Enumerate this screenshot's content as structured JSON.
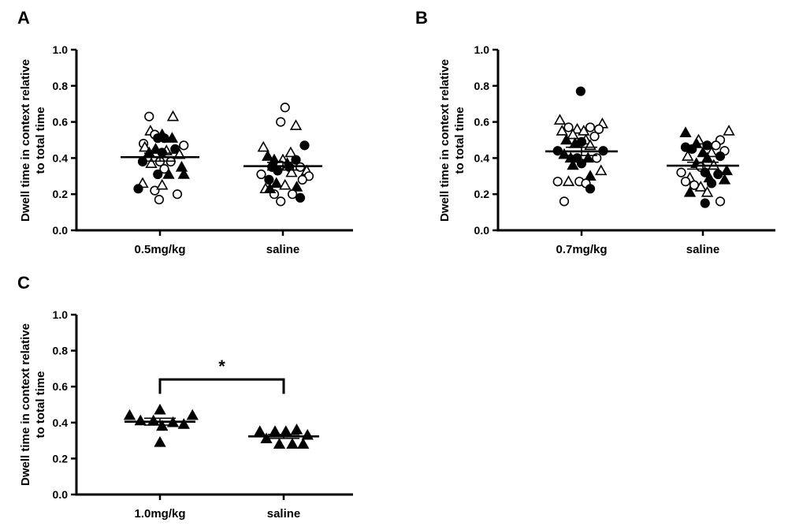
{
  "figure": {
    "panel_labels": [
      "A",
      "B",
      "C"
    ],
    "y_axis_label_line1": "Dwell time in context relative",
    "y_axis_label_line2": "to total time",
    "significance_marker": "*"
  },
  "chart_data": [
    {
      "panel": "A",
      "type": "scatter",
      "categories": [
        "0.5mg/kg",
        "saline"
      ],
      "ylim": [
        0,
        1.0
      ],
      "yticks": [
        "0.0",
        "0.2",
        "0.4",
        "0.6",
        "0.8",
        "1.0"
      ],
      "ylabel": "Dwell time in context relative to total time",
      "groups": [
        {
          "category": "0.5mg/kg",
          "mean": 0.405,
          "sem": 0.022,
          "points": [
            {
              "dx": -0.38,
              "y": 0.48,
              "marker": "open-circle"
            },
            {
              "dx": -0.25,
              "y": 0.63,
              "marker": "open-circle"
            },
            {
              "dx": 0.3,
              "y": 0.63,
              "marker": "open-triangle"
            },
            {
              "dx": -0.22,
              "y": 0.55,
              "marker": "open-triangle"
            },
            {
              "dx": 0.05,
              "y": 0.53,
              "marker": "filled-triangle"
            },
            {
              "dx": -0.12,
              "y": 0.53,
              "marker": "open-circle"
            },
            {
              "dx": 0.1,
              "y": 0.51,
              "marker": "filled-circle"
            },
            {
              "dx": -0.05,
              "y": 0.51,
              "marker": "filled-circle"
            },
            {
              "dx": 0.28,
              "y": 0.51,
              "marker": "filled-triangle"
            },
            {
              "dx": 0.55,
              "y": 0.47,
              "marker": "open-circle"
            },
            {
              "dx": -0.35,
              "y": 0.46,
              "marker": "open-triangle"
            },
            {
              "dx": 0.35,
              "y": 0.45,
              "marker": "filled-circle"
            },
            {
              "dx": -0.1,
              "y": 0.45,
              "marker": "filled-triangle"
            },
            {
              "dx": 0.15,
              "y": 0.44,
              "marker": "open-triangle"
            },
            {
              "dx": -0.25,
              "y": 0.43,
              "marker": "filled-triangle"
            },
            {
              "dx": 0.05,
              "y": 0.43,
              "marker": "filled-circle"
            },
            {
              "dx": 0.45,
              "y": 0.42,
              "marker": "open-triangle"
            },
            {
              "dx": -0.4,
              "y": 0.38,
              "marker": "filled-circle"
            },
            {
              "dx": 0.0,
              "y": 0.38,
              "marker": "open-circle"
            },
            {
              "dx": -0.2,
              "y": 0.37,
              "marker": "open-triangle"
            },
            {
              "dx": 0.25,
              "y": 0.38,
              "marker": "open-circle"
            },
            {
              "dx": 0.5,
              "y": 0.35,
              "marker": "filled-triangle"
            },
            {
              "dx": 0.1,
              "y": 0.34,
              "marker": "open-circle"
            },
            {
              "dx": -0.05,
              "y": 0.31,
              "marker": "filled-circle"
            },
            {
              "dx": 0.2,
              "y": 0.31,
              "marker": "filled-triangle"
            },
            {
              "dx": 0.55,
              "y": 0.31,
              "marker": "filled-triangle"
            },
            {
              "dx": -0.4,
              "y": 0.26,
              "marker": "open-triangle"
            },
            {
              "dx": -0.5,
              "y": 0.23,
              "marker": "filled-circle"
            },
            {
              "dx": -0.12,
              "y": 0.22,
              "marker": "open-circle"
            },
            {
              "dx": 0.05,
              "y": 0.25,
              "marker": "open-triangle"
            },
            {
              "dx": 0.4,
              "y": 0.2,
              "marker": "open-circle"
            },
            {
              "dx": -0.02,
              "y": 0.17,
              "marker": "open-circle"
            }
          ]
        },
        {
          "category": "saline",
          "mean": 0.355,
          "sem": 0.021,
          "points": [
            {
              "dx": 0.05,
              "y": 0.68,
              "marker": "open-circle"
            },
            {
              "dx": -0.05,
              "y": 0.6,
              "marker": "open-circle"
            },
            {
              "dx": 0.3,
              "y": 0.58,
              "marker": "open-triangle"
            },
            {
              "dx": -0.45,
              "y": 0.46,
              "marker": "open-triangle"
            },
            {
              "dx": 0.5,
              "y": 0.47,
              "marker": "filled-circle"
            },
            {
              "dx": 0.18,
              "y": 0.43,
              "marker": "open-triangle"
            },
            {
              "dx": -0.35,
              "y": 0.41,
              "marker": "filled-triangle"
            },
            {
              "dx": 0.0,
              "y": 0.39,
              "marker": "open-triangle"
            },
            {
              "dx": -0.2,
              "y": 0.39,
              "marker": "filled-triangle"
            },
            {
              "dx": 0.3,
              "y": 0.39,
              "marker": "filled-circle"
            },
            {
              "dx": 0.1,
              "y": 0.37,
              "marker": "filled-triangle"
            },
            {
              "dx": -0.05,
              "y": 0.36,
              "marker": "open-circle"
            },
            {
              "dx": 0.15,
              "y": 0.35,
              "marker": "filled-circle"
            },
            {
              "dx": -0.25,
              "y": 0.35,
              "marker": "filled-circle"
            },
            {
              "dx": 0.4,
              "y": 0.35,
              "marker": "open-circle"
            },
            {
              "dx": 0.55,
              "y": 0.33,
              "marker": "open-triangle"
            },
            {
              "dx": -0.12,
              "y": 0.33,
              "marker": "filled-circle"
            },
            {
              "dx": 0.2,
              "y": 0.32,
              "marker": "open-triangle"
            },
            {
              "dx": -0.5,
              "y": 0.31,
              "marker": "open-circle"
            },
            {
              "dx": 0.6,
              "y": 0.3,
              "marker": "open-circle"
            },
            {
              "dx": -0.32,
              "y": 0.28,
              "marker": "filled-circle"
            },
            {
              "dx": 0.45,
              "y": 0.28,
              "marker": "open-circle"
            },
            {
              "dx": -0.15,
              "y": 0.26,
              "marker": "filled-triangle"
            },
            {
              "dx": 0.05,
              "y": 0.25,
              "marker": "open-triangle"
            },
            {
              "dx": 0.32,
              "y": 0.24,
              "marker": "filled-triangle"
            },
            {
              "dx": -0.4,
              "y": 0.23,
              "marker": "open-triangle"
            },
            {
              "dx": -0.2,
              "y": 0.2,
              "marker": "open-circle"
            },
            {
              "dx": 0.22,
              "y": 0.2,
              "marker": "open-circle"
            },
            {
              "dx": 0.4,
              "y": 0.18,
              "marker": "filled-circle"
            },
            {
              "dx": -0.05,
              "y": 0.16,
              "marker": "open-circle"
            },
            {
              "dx": -0.3,
              "y": 0.23,
              "marker": "filled-triangle"
            }
          ]
        }
      ]
    },
    {
      "panel": "B",
      "type": "scatter",
      "categories": [
        "0.7mg/kg",
        "saline"
      ],
      "ylim": [
        0,
        1.0
      ],
      "yticks": [
        "0.0",
        "0.2",
        "0.4",
        "0.6",
        "0.8",
        "1.0"
      ],
      "ylabel": "Dwell time in context relative to total time",
      "groups": [
        {
          "category": "0.7mg/kg",
          "mean": 0.437,
          "sem": 0.023,
          "points": [
            {
              "dx": -0.02,
              "y": 0.77,
              "marker": "filled-circle"
            },
            {
              "dx": -0.5,
              "y": 0.61,
              "marker": "open-triangle"
            },
            {
              "dx": 0.48,
              "y": 0.59,
              "marker": "open-triangle"
            },
            {
              "dx": 0.2,
              "y": 0.57,
              "marker": "open-circle"
            },
            {
              "dx": -0.3,
              "y": 0.57,
              "marker": "open-circle"
            },
            {
              "dx": 0.4,
              "y": 0.56,
              "marker": "open-circle"
            },
            {
              "dx": -0.45,
              "y": 0.55,
              "marker": "open-triangle"
            },
            {
              "dx": -0.1,
              "y": 0.56,
              "marker": "open-triangle"
            },
            {
              "dx": 0.05,
              "y": 0.55,
              "marker": "open-triangle"
            },
            {
              "dx": -0.2,
              "y": 0.53,
              "marker": "open-triangle"
            },
            {
              "dx": 0.3,
              "y": 0.52,
              "marker": "open-circle"
            },
            {
              "dx": -0.35,
              "y": 0.5,
              "marker": "filled-triangle"
            },
            {
              "dx": 0.1,
              "y": 0.5,
              "marker": "open-triangle"
            },
            {
              "dx": -0.15,
              "y": 0.48,
              "marker": "filled-triangle"
            },
            {
              "dx": 0.0,
              "y": 0.49,
              "marker": "filled-circle"
            },
            {
              "dx": 0.2,
              "y": 0.47,
              "marker": "open-triangle"
            },
            {
              "dx": -0.55,
              "y": 0.44,
              "marker": "filled-circle"
            },
            {
              "dx": 0.5,
              "y": 0.44,
              "marker": "filled-circle"
            },
            {
              "dx": -0.4,
              "y": 0.42,
              "marker": "filled-triangle"
            },
            {
              "dx": -0.25,
              "y": 0.4,
              "marker": "filled-triangle"
            },
            {
              "dx": -0.1,
              "y": 0.4,
              "marker": "filled-circle"
            },
            {
              "dx": 0.15,
              "y": 0.4,
              "marker": "filled-triangle"
            },
            {
              "dx": 0.35,
              "y": 0.4,
              "marker": "open-circle"
            },
            {
              "dx": 0.0,
              "y": 0.37,
              "marker": "filled-circle"
            },
            {
              "dx": -0.2,
              "y": 0.36,
              "marker": "filled-triangle"
            },
            {
              "dx": 0.45,
              "y": 0.33,
              "marker": "open-triangle"
            },
            {
              "dx": 0.2,
              "y": 0.3,
              "marker": "filled-triangle"
            },
            {
              "dx": -0.55,
              "y": 0.27,
              "marker": "open-circle"
            },
            {
              "dx": -0.3,
              "y": 0.27,
              "marker": "open-triangle"
            },
            {
              "dx": -0.05,
              "y": 0.27,
              "marker": "open-circle"
            },
            {
              "dx": 0.1,
              "y": 0.26,
              "marker": "open-circle"
            },
            {
              "dx": 0.2,
              "y": 0.23,
              "marker": "filled-circle"
            },
            {
              "dx": -0.4,
              "y": 0.16,
              "marker": "open-circle"
            }
          ]
        },
        {
          "category": "saline",
          "mean": 0.358,
          "sem": 0.019,
          "points": [
            {
              "dx": -0.4,
              "y": 0.54,
              "marker": "filled-triangle"
            },
            {
              "dx": 0.6,
              "y": 0.55,
              "marker": "open-triangle"
            },
            {
              "dx": -0.1,
              "y": 0.5,
              "marker": "open-triangle"
            },
            {
              "dx": 0.4,
              "y": 0.5,
              "marker": "open-circle"
            },
            {
              "dx": -0.15,
              "y": 0.48,
              "marker": "filled-triangle"
            },
            {
              "dx": 0.3,
              "y": 0.47,
              "marker": "open-circle"
            },
            {
              "dx": 0.1,
              "y": 0.47,
              "marker": "filled-circle"
            },
            {
              "dx": -0.4,
              "y": 0.46,
              "marker": "filled-circle"
            },
            {
              "dx": 0.5,
              "y": 0.44,
              "marker": "open-circle"
            },
            {
              "dx": -0.25,
              "y": 0.45,
              "marker": "filled-circle"
            },
            {
              "dx": 0.2,
              "y": 0.43,
              "marker": "open-triangle"
            },
            {
              "dx": 0.0,
              "y": 0.43,
              "marker": "filled-triangle"
            },
            {
              "dx": -0.35,
              "y": 0.41,
              "marker": "open-triangle"
            },
            {
              "dx": 0.4,
              "y": 0.41,
              "marker": "filled-circle"
            },
            {
              "dx": 0.1,
              "y": 0.4,
              "marker": "filled-triangle"
            },
            {
              "dx": -0.15,
              "y": 0.37,
              "marker": "filled-triangle"
            },
            {
              "dx": 0.25,
              "y": 0.36,
              "marker": "open-triangle"
            },
            {
              "dx": -0.05,
              "y": 0.35,
              "marker": "open-circle"
            },
            {
              "dx": 0.55,
              "y": 0.33,
              "marker": "filled-triangle"
            },
            {
              "dx": -0.5,
              "y": 0.32,
              "marker": "open-circle"
            },
            {
              "dx": 0.05,
              "y": 0.32,
              "marker": "filled-circle"
            },
            {
              "dx": 0.35,
              "y": 0.31,
              "marker": "filled-circle"
            },
            {
              "dx": -0.3,
              "y": 0.29,
              "marker": "open-triangle"
            },
            {
              "dx": 0.15,
              "y": 0.29,
              "marker": "filled-triangle"
            },
            {
              "dx": -0.4,
              "y": 0.27,
              "marker": "open-circle"
            },
            {
              "dx": 0.5,
              "y": 0.28,
              "marker": "filled-triangle"
            },
            {
              "dx": 0.2,
              "y": 0.26,
              "marker": "filled-circle"
            },
            {
              "dx": -0.2,
              "y": 0.25,
              "marker": "open-circle"
            },
            {
              "dx": -0.05,
              "y": 0.24,
              "marker": "open-triangle"
            },
            {
              "dx": -0.3,
              "y": 0.21,
              "marker": "filled-triangle"
            },
            {
              "dx": 0.1,
              "y": 0.21,
              "marker": "open-triangle"
            },
            {
              "dx": 0.4,
              "y": 0.16,
              "marker": "open-circle"
            },
            {
              "dx": 0.05,
              "y": 0.15,
              "marker": "filled-circle"
            }
          ]
        }
      ]
    },
    {
      "panel": "C",
      "type": "scatter",
      "categories": [
        "1.0mg/kg",
        "saline"
      ],
      "ylim": [
        0,
        1.0
      ],
      "yticks": [
        "0.0",
        "0.2",
        "0.4",
        "0.6",
        "0.8",
        "1.0"
      ],
      "ylabel": "Dwell time in context relative to total time",
      "significance": {
        "from": "1.0mg/kg",
        "to": "saline",
        "label": "*",
        "y": 0.64
      },
      "groups": [
        {
          "category": "1.0mg/kg",
          "mean": 0.405,
          "sem": 0.019,
          "points": [
            {
              "dx": -0.7,
              "y": 0.44,
              "marker": "filled-triangle"
            },
            {
              "dx": 0.0,
              "y": 0.47,
              "marker": "filled-triangle"
            },
            {
              "dx": 0.75,
              "y": 0.44,
              "marker": "filled-triangle"
            },
            {
              "dx": -0.45,
              "y": 0.41,
              "marker": "filled-triangle"
            },
            {
              "dx": -0.15,
              "y": 0.41,
              "marker": "filled-triangle"
            },
            {
              "dx": 0.3,
              "y": 0.4,
              "marker": "filled-triangle"
            },
            {
              "dx": 0.55,
              "y": 0.39,
              "marker": "filled-triangle"
            },
            {
              "dx": 0.05,
              "y": 0.38,
              "marker": "filled-triangle"
            },
            {
              "dx": 0.0,
              "y": 0.29,
              "marker": "filled-triangle"
            }
          ]
        },
        {
          "category": "saline",
          "mean": 0.323,
          "sem": 0.011,
          "points": [
            {
              "dx": -0.55,
              "y": 0.35,
              "marker": "filled-triangle"
            },
            {
              "dx": -0.2,
              "y": 0.35,
              "marker": "filled-triangle"
            },
            {
              "dx": 0.05,
              "y": 0.35,
              "marker": "filled-triangle"
            },
            {
              "dx": 0.3,
              "y": 0.36,
              "marker": "filled-triangle"
            },
            {
              "dx": 0.55,
              "y": 0.33,
              "marker": "filled-triangle"
            },
            {
              "dx": -0.4,
              "y": 0.31,
              "marker": "filled-triangle"
            },
            {
              "dx": -0.1,
              "y": 0.28,
              "marker": "filled-triangle"
            },
            {
              "dx": 0.2,
              "y": 0.28,
              "marker": "filled-triangle"
            },
            {
              "dx": 0.45,
              "y": 0.28,
              "marker": "filled-triangle"
            }
          ]
        }
      ]
    }
  ]
}
